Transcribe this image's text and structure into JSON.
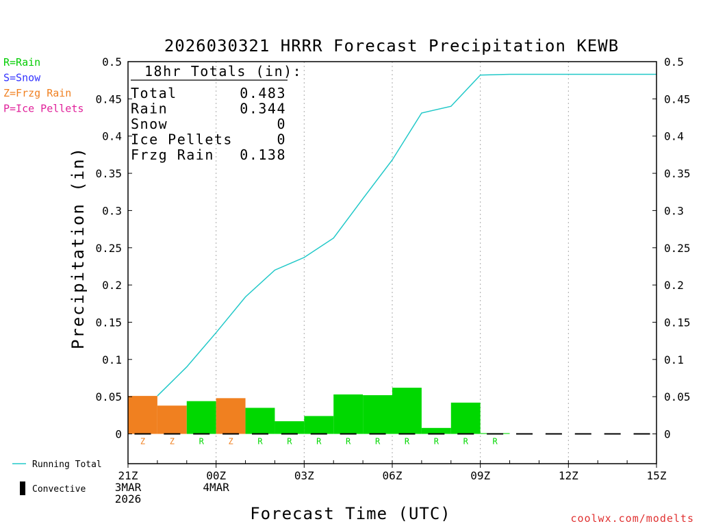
{
  "title": "2026030321 HRRR Forecast Precipitation KEWB",
  "ylabel": "Precipitation (in)",
  "xlabel": "Forecast Time (UTC)",
  "watermark": "coolwx.com/modelts",
  "type_key": [
    {
      "label": "R=Rain",
      "color": "#00cc00"
    },
    {
      "label": "S=Snow",
      "color": "#3333ff"
    },
    {
      "label": "Z=Frzg Rain",
      "color": "#f08020"
    },
    {
      "label": "P=Ice Pellets",
      "color": "#e0209a"
    }
  ],
  "legend": {
    "running_total": "Running Total",
    "convective": "Convective"
  },
  "totals": {
    "heading": "18hr Totals (in):",
    "rows": [
      {
        "label": "Total",
        "value": "0.483"
      },
      {
        "label": "Rain",
        "value": "0.344"
      },
      {
        "label": "Snow",
        "value": "0"
      },
      {
        "label": "Ice Pellets",
        "value": "0"
      },
      {
        "label": "Frzg Rain",
        "value": "0.138"
      }
    ]
  },
  "chart_data": {
    "type": "bar",
    "ylim": [
      -0.04,
      0.5
    ],
    "xlim": [
      "2026-03-03 21Z",
      "2026-03-04 15Z"
    ],
    "yticks": [
      "0",
      "0.05",
      "0.1",
      "0.15",
      "0.2",
      "0.25",
      "0.3",
      "0.35",
      "0.4",
      "0.45",
      "0.5"
    ],
    "xticks": [
      {
        "hour": 0,
        "lines": [
          "21Z",
          "3MAR",
          "2026"
        ]
      },
      {
        "hour": 3,
        "lines": [
          "00Z",
          "4MAR"
        ]
      },
      {
        "hour": 6,
        "lines": [
          "03Z"
        ]
      },
      {
        "hour": 9,
        "lines": [
          "06Z"
        ]
      },
      {
        "hour": 12,
        "lines": [
          "09Z"
        ]
      },
      {
        "hour": 15,
        "lines": [
          "12Z"
        ]
      },
      {
        "hour": 18,
        "lines": [
          "15Z"
        ]
      }
    ],
    "grid_x_dotted": true,
    "colors": {
      "Z": "#f08020",
      "R": "#00d800",
      "S": "#3333ff",
      "P": "#e0209a",
      "line": "#20c8c8"
    },
    "bars": [
      {
        "hour": 1,
        "value": 0.051,
        "type": "Z"
      },
      {
        "hour": 2,
        "value": 0.038,
        "type": "Z"
      },
      {
        "hour": 3,
        "value": 0.044,
        "type": "R"
      },
      {
        "hour": 4,
        "value": 0.048,
        "type": "Z"
      },
      {
        "hour": 5,
        "value": 0.035,
        "type": "R"
      },
      {
        "hour": 6,
        "value": 0.017,
        "type": "R"
      },
      {
        "hour": 7,
        "value": 0.024,
        "type": "R"
      },
      {
        "hour": 8,
        "value": 0.053,
        "type": "R"
      },
      {
        "hour": 9,
        "value": 0.052,
        "type": "R"
      },
      {
        "hour": 10,
        "value": 0.062,
        "type": "R"
      },
      {
        "hour": 11,
        "value": 0.008,
        "type": "R"
      },
      {
        "hour": 12,
        "value": 0.042,
        "type": "R"
      },
      {
        "hour": 13,
        "value": 0.001,
        "type": "R"
      },
      {
        "hour": 14,
        "value": 0,
        "type": ""
      },
      {
        "hour": 15,
        "value": 0,
        "type": ""
      },
      {
        "hour": 16,
        "value": 0,
        "type": ""
      },
      {
        "hour": 17,
        "value": 0,
        "type": ""
      },
      {
        "hour": 18,
        "value": 0,
        "type": ""
      }
    ],
    "series": [
      {
        "name": "Running Total",
        "x": [
          1,
          2,
          3,
          4,
          5,
          6,
          7,
          8,
          9,
          10,
          11,
          12,
          13,
          14,
          15,
          16,
          17,
          18
        ],
        "values": [
          0.051,
          0.09,
          0.136,
          0.184,
          0.22,
          0.237,
          0.263,
          0.316,
          0.368,
          0.431,
          0.44,
          0.482,
          0.483,
          0.483,
          0.483,
          0.483,
          0.483,
          0.483
        ]
      }
    ]
  }
}
